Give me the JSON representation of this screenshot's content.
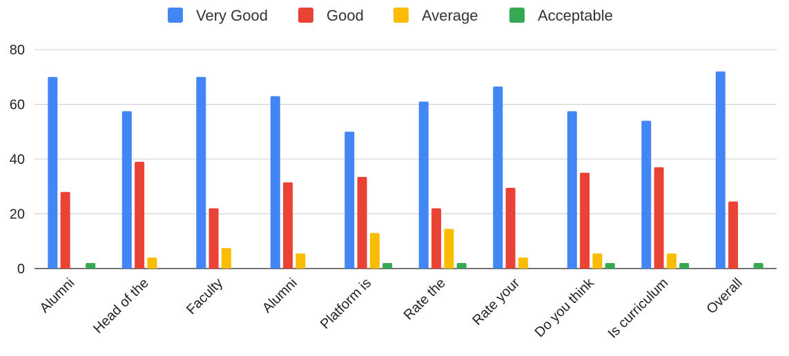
{
  "chart_data": {
    "type": "bar",
    "categories": [
      "Alumni",
      "Head of the",
      "Faculty",
      "Alumni",
      "Platform is",
      "Rate the",
      "Rate your",
      "Do you think",
      "Is curriculum",
      "Overall"
    ],
    "series": [
      {
        "name": "Very Good",
        "color": "#4285f4",
        "values": [
          70,
          57.5,
          70,
          63,
          50,
          61,
          66.5,
          57.5,
          54,
          72
        ]
      },
      {
        "name": "Good",
        "color": "#ea4335",
        "values": [
          28,
          39,
          22,
          31.5,
          33.5,
          22,
          29.5,
          35,
          37,
          24.5
        ]
      },
      {
        "name": "Average",
        "color": "#fbbc04",
        "values": [
          0,
          4,
          7.5,
          5.5,
          13,
          14.5,
          4,
          5.5,
          5.5,
          0
        ]
      },
      {
        "name": "Acceptable",
        "color": "#34a853",
        "values": [
          2,
          0,
          0,
          0,
          2,
          2,
          0,
          2,
          2,
          2
        ]
      }
    ],
    "yticks": [
      "0",
      "20",
      "40",
      "60",
      "80"
    ],
    "ylim": [
      0,
      80
    ],
    "grid": true,
    "legend_position": "top-center",
    "title": "",
    "xlabel": "",
    "ylabel": ""
  }
}
